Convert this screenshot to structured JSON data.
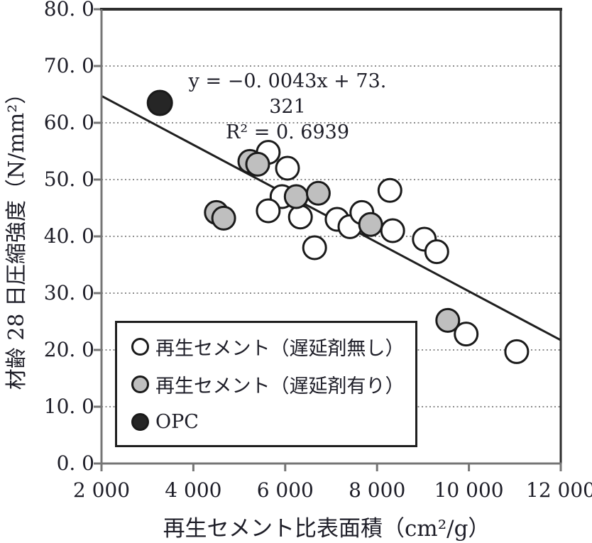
{
  "chart_data": {
    "type": "scatter",
    "title": "",
    "xlabel": "再生セメント比表面積（cm²/g）",
    "ylabel": "材齢 28 日圧縮強度（N/mm²）",
    "xlim": [
      2000,
      12000
    ],
    "ylim": [
      0,
      80
    ],
    "x_ticks": [
      2000,
      4000,
      6000,
      8000,
      10000,
      12000
    ],
    "x_tick_labels": [
      "2 000",
      "4 000",
      "6 000",
      "8 000",
      "10 000",
      "12 000"
    ],
    "y_ticks": [
      0,
      10,
      20,
      30,
      40,
      50,
      60,
      70,
      80
    ],
    "y_tick_labels": [
      "0. 0",
      "10. 0",
      "20. 0",
      "30. 0",
      "40. 0",
      "50. 0",
      "60. 0",
      "70. 0",
      "80. 0"
    ],
    "grid": "horizontal dotted lines at every 10 units",
    "legend_position": "inside lower-left",
    "annotation": {
      "equation": "y = −0. 0043x + 73. 321",
      "r_squared": "R² = 0. 6939"
    },
    "trendline": {
      "slope": -0.0043,
      "intercept": 73.321,
      "x_start": 2000,
      "x_end": 12000
    },
    "series": [
      {
        "name": "再生セメント（遅延剤無し）",
        "marker": "open circle",
        "marker_fill": "#ffffff",
        "points": [
          [
            5630,
            54.8
          ],
          [
            6050,
            52.0
          ],
          [
            5930,
            47.0
          ],
          [
            5630,
            44.5
          ],
          [
            6330,
            43.4
          ],
          [
            6640,
            38.0
          ],
          [
            7130,
            43.0
          ],
          [
            7410,
            41.7
          ],
          [
            7670,
            44.2
          ],
          [
            8280,
            48.1
          ],
          [
            8340,
            41.0
          ],
          [
            9030,
            39.5
          ],
          [
            9300,
            37.3
          ],
          [
            9940,
            22.8
          ],
          [
            11040,
            19.7
          ]
        ]
      },
      {
        "name": "再生セメント（遅延剤有り）",
        "marker": "gray filled circle",
        "marker_fill": "#bfbfbf",
        "points": [
          [
            4500,
            44.2
          ],
          [
            4660,
            43.2
          ],
          [
            5230,
            53.2
          ],
          [
            5400,
            52.7
          ],
          [
            6240,
            47.0
          ],
          [
            6720,
            47.6
          ],
          [
            7860,
            42.1
          ],
          [
            9540,
            25.2
          ]
        ]
      },
      {
        "name": "OPC",
        "marker": "black filled circle",
        "marker_fill": "#262626",
        "points": [
          [
            3270,
            63.5
          ]
        ]
      }
    ],
    "colors": {
      "axis_gray": "#757575",
      "frame_dark": "#2e2e2e",
      "grid": "#8c8c8c",
      "text": "#1e1e28",
      "marker_stroke": "#1a1a1a",
      "trend_line": "#1f1f1f"
    }
  }
}
